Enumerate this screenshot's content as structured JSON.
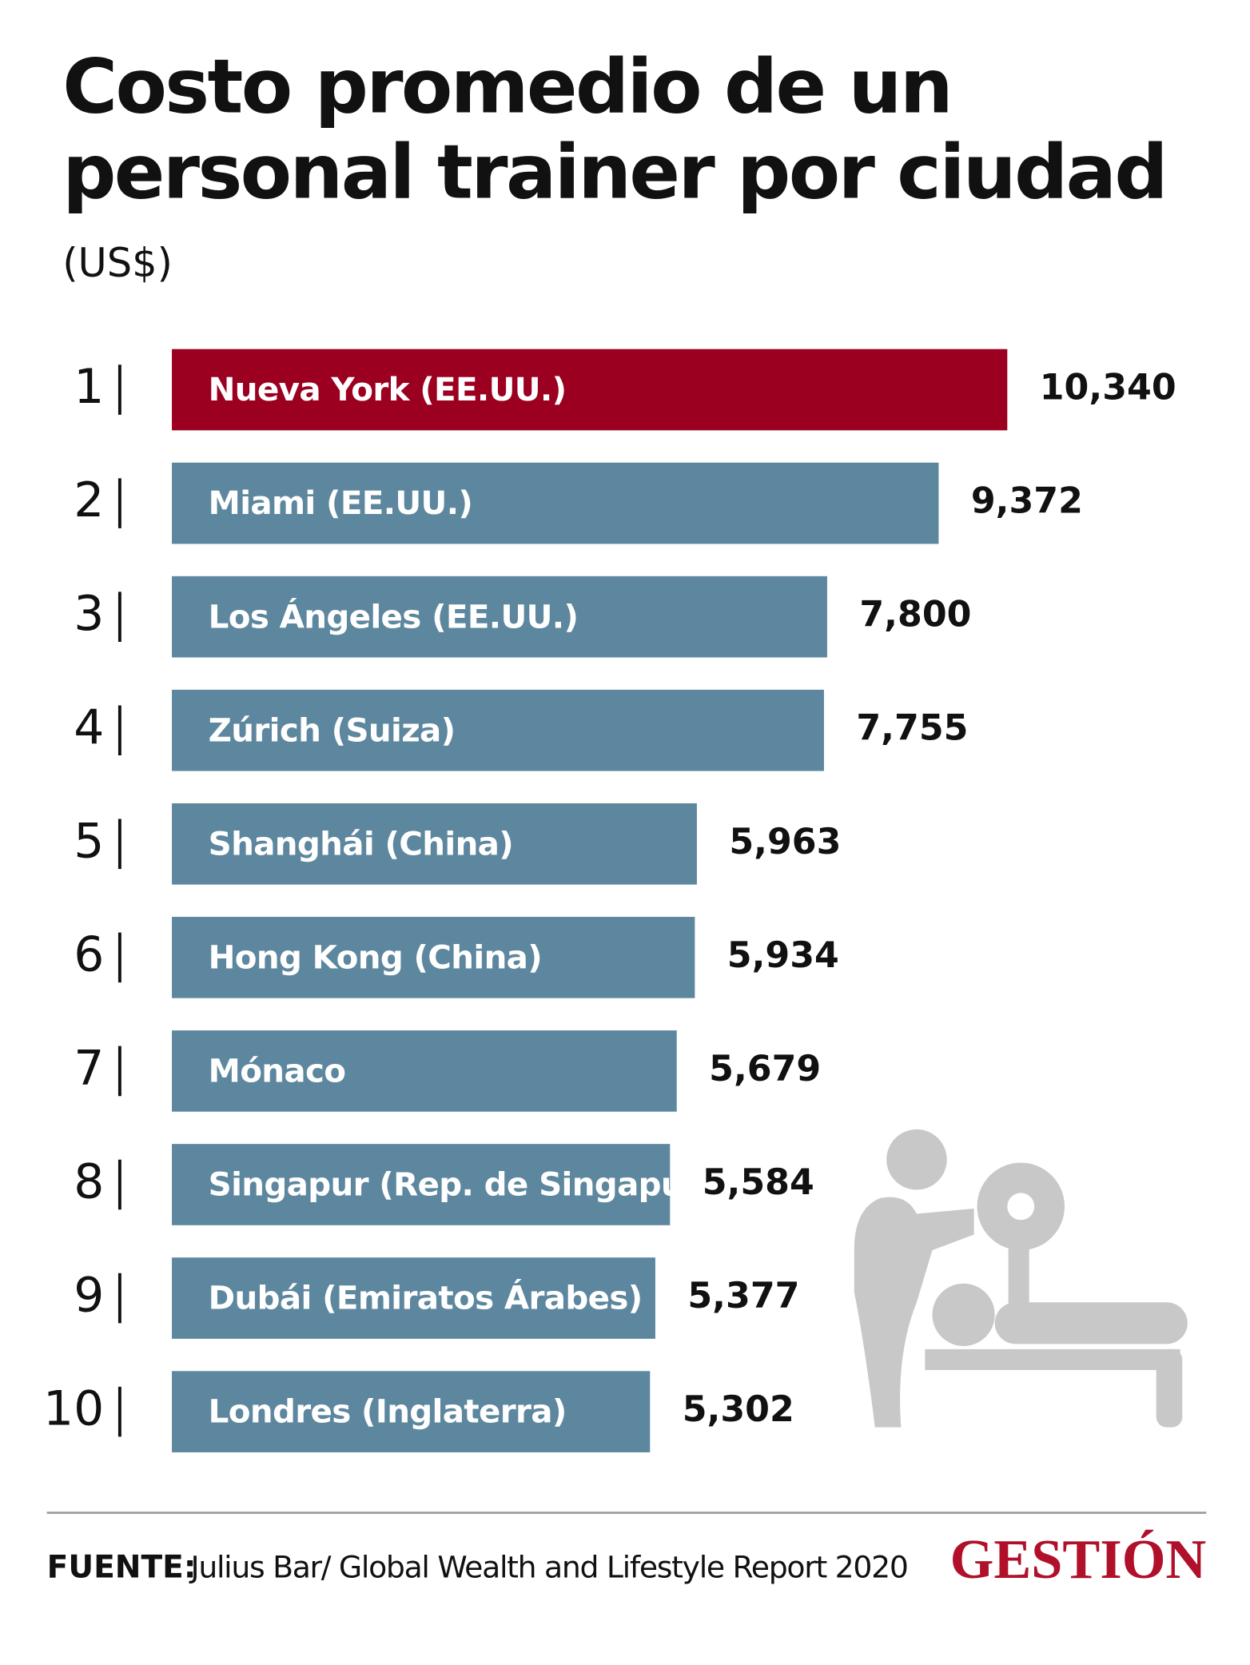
{
  "chart_data": {
    "type": "bar",
    "orientation": "horizontal",
    "title": [
      "Costo promedio de un",
      "personal trainer por ciudad"
    ],
    "subtitle": "(US$)",
    "ranks": [
      1,
      2,
      3,
      4,
      5,
      6,
      7,
      8,
      9,
      10
    ],
    "categories": [
      "Nueva York (EE.UU.)",
      "Miami (EE.UU.)",
      "Los Ángeles (EE.UU.)",
      "Zúrich (Suiza)",
      "Shanghái (China)",
      "Hong Kong (China)",
      "Mónaco",
      "Singapur (Rep. de Singapur)",
      "Dubái (Emiratos Árabes)",
      "Londres (Inglaterra)"
    ],
    "values": [
      10340,
      9372,
      7800,
      7755,
      5963,
      5934,
      5679,
      5584,
      5377,
      5302
    ],
    "value_labels": [
      "10,340",
      "9,372",
      "7,800",
      "7,755",
      "5,963",
      "5,934",
      "5,679",
      "5,584",
      "5,377",
      "5,302"
    ],
    "colors": [
      "#9b0020",
      "#5d879f",
      "#5d879f",
      "#5d879f",
      "#5d879f",
      "#5d879f",
      "#5d879f",
      "#5d879f",
      "#5d879f",
      "#5d879f"
    ],
    "xlim": [
      -1440,
      10340
    ]
  },
  "footer": {
    "source_label": "FUENTE:",
    "source": "Julius Bar/ Global Wealth and Lifestyle Report 2020",
    "brand": "GESTIÓN"
  }
}
